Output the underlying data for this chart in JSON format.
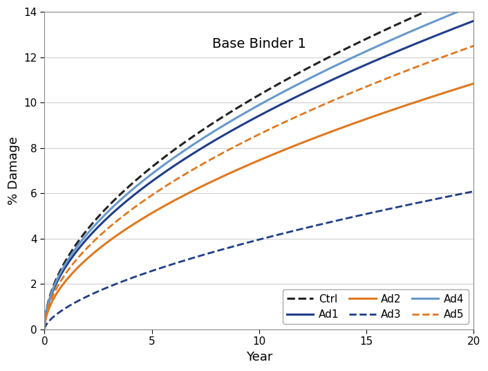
{
  "title": "Base Binder 1",
  "xlabel": "Year",
  "ylabel": "% Damage",
  "xlim": [
    0,
    20
  ],
  "ylim": [
    0,
    14
  ],
  "yticks": [
    0,
    2,
    4,
    6,
    8,
    10,
    12,
    14
  ],
  "xticks": [
    0,
    5,
    10,
    15,
    20
  ],
  "curves": [
    {
      "label": "Ctrl",
      "color": "#222222",
      "linestyle": "--",
      "linewidth": 2.2,
      "a": 3.05,
      "b": 0.53
    },
    {
      "label": "Ad1",
      "color": "#1f3d8a",
      "linestyle": "-",
      "linewidth": 2.2,
      "a": 2.78,
      "b": 0.53
    },
    {
      "label": "Ad2",
      "color": "#e07820",
      "linestyle": "-",
      "linewidth": 2.2,
      "a": 2.15,
      "b": 0.54
    },
    {
      "label": "Ad3",
      "color": "#1f3d8a",
      "linestyle": "--",
      "linewidth": 2.0,
      "a": 0.95,
      "b": 0.62
    },
    {
      "label": "Ad4",
      "color": "#6699cc",
      "linestyle": "-",
      "linewidth": 2.2,
      "a": 2.92,
      "b": 0.53
    },
    {
      "label": "Ad5",
      "color": "#e07820",
      "linestyle": "--",
      "linewidth": 2.0,
      "a": 2.48,
      "b": 0.54
    }
  ],
  "legend_loc": "lower right",
  "legend_ncol": 3,
  "background_color": "#ffffff",
  "grid_color": "#d0d0d0"
}
